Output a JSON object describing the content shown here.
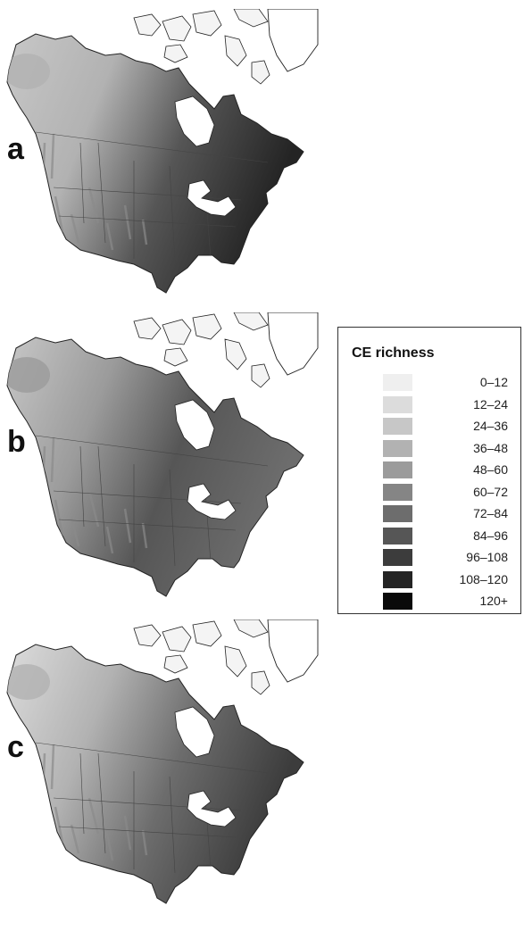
{
  "panels": [
    {
      "letter": "a",
      "levels": [
        2,
        3,
        7,
        9
      ]
    },
    {
      "letter": "b",
      "levels": [
        2,
        4,
        7,
        6
      ]
    },
    {
      "letter": "c",
      "levels": [
        1,
        3,
        6,
        8
      ]
    }
  ],
  "legend": {
    "title": "CE richness",
    "classes": [
      {
        "label": "0–12",
        "color": "#efefef"
      },
      {
        "label": "12–24",
        "color": "#dcdcdc"
      },
      {
        "label": "24–36",
        "color": "#c7c7c7"
      },
      {
        "label": "36–48",
        "color": "#b2b2b2"
      },
      {
        "label": "48–60",
        "color": "#9b9b9b"
      },
      {
        "label": "60–72",
        "color": "#858585"
      },
      {
        "label": "72–84",
        "color": "#6d6d6d"
      },
      {
        "label": "84–96",
        "color": "#565656"
      },
      {
        "label": "96–108",
        "color": "#3c3c3c"
      },
      {
        "label": "108–120",
        "color": "#242424"
      },
      {
        "label": "120+",
        "color": "#0a0a0a"
      }
    ]
  }
}
